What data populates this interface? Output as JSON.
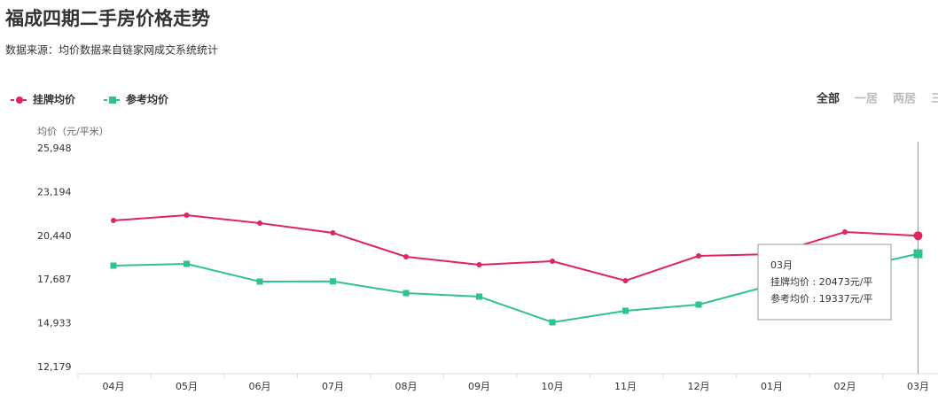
{
  "header": {
    "title": "福成四期二手房价格走势",
    "subtitle": "数据来源：均价数据来自链家网成交系统统计"
  },
  "tabs": [
    "全部",
    "一居",
    "两居",
    "三"
  ],
  "chart_data": {
    "type": "line",
    "y_label": "均价（元/平米）",
    "categories": [
      "04月",
      "05月",
      "06月",
      "07月",
      "08月",
      "09月",
      "10月",
      "11月",
      "12月",
      "01月",
      "02月",
      "03月"
    ],
    "series": [
      {
        "name": "挂牌均价",
        "color": "#e0245e",
        "marker": "circle",
        "values": [
          21433,
          21768,
          21266,
          20653,
          19148,
          18646,
          18869,
          17642,
          19203,
          19315,
          20709,
          20473
        ]
      },
      {
        "name": "参考均价",
        "color": "#2ec28e",
        "marker": "square",
        "values": [
          18590,
          18702,
          17587,
          17600,
          16862,
          16639,
          15022,
          15747,
          16137,
          17364,
          18312,
          19337
        ]
      }
    ],
    "ylim": [
      12179,
      25948
    ],
    "yticks": [
      {
        "value": 12179,
        "label": "12,179"
      },
      {
        "value": 14933,
        "label": "14,933"
      },
      {
        "value": 17687,
        "label": "17,687"
      },
      {
        "value": 20440,
        "label": "20,440"
      },
      {
        "value": 23194,
        "label": "23,194"
      },
      {
        "value": 25948,
        "label": "25,948"
      }
    ],
    "tooltip": {
      "title": "03月",
      "lines": [
        "挂牌均价 : 20473元/平",
        "参考均价 : 19337元/平"
      ]
    }
  }
}
